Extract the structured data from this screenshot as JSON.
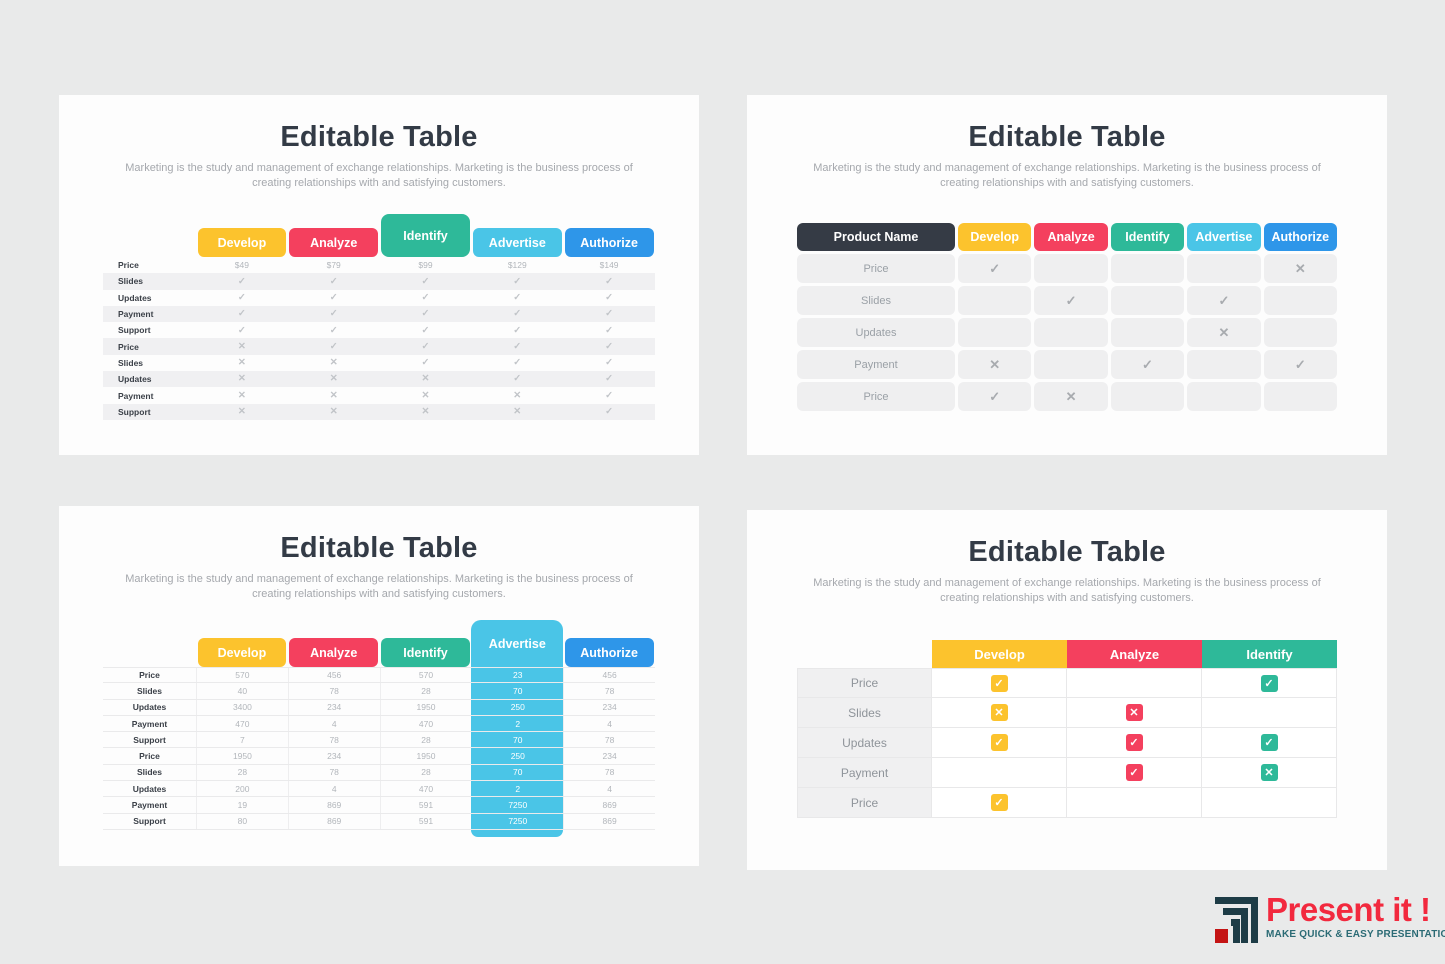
{
  "palette": {
    "page-bg": "#e9eaea",
    "panel-bg": "#fdfdfd",
    "develop": "#fcc32d",
    "analyze": "#f4405e",
    "identify": "#2eb999",
    "advertise": "#4ac5e7",
    "authorize": "#2e96e9",
    "header-dark": "#353b45",
    "logo-red": "#f2293e",
    "logo-teal": "#2b6b75",
    "logo-dark": "#1d3c46",
    "logo-square": "#c41414"
  },
  "slides": [
    {
      "name": "top-left",
      "title": "Editable Table",
      "subtitle": "Marketing is the study and management of exchange relationships. Marketing is the business process of creating relationships with and satisfying customers.",
      "table": {
        "style": "tabs",
        "variant": "striped",
        "raised_col": 2,
        "columns": [
          {
            "label": "Develop",
            "color": "develop"
          },
          {
            "label": "Analyze",
            "color": "analyze"
          },
          {
            "label": "Identify",
            "color": "identify"
          },
          {
            "label": "Advertise",
            "color": "advertise"
          },
          {
            "label": "Authorize",
            "color": "authorize"
          }
        ],
        "rows": [
          {
            "label": "Price",
            "cells": [
              "$49",
              "$79",
              "$99",
              "$129",
              "$149"
            ]
          },
          {
            "label": "Slides",
            "cells": [
              "check",
              "check",
              "check",
              "check",
              "check"
            ]
          },
          {
            "label": "Updates",
            "cells": [
              "check",
              "check",
              "check",
              "check",
              "check"
            ]
          },
          {
            "label": "Payment",
            "cells": [
              "check",
              "check",
              "check",
              "check",
              "check"
            ]
          },
          {
            "label": "Support",
            "cells": [
              "check",
              "check",
              "check",
              "check",
              "check"
            ]
          },
          {
            "label": "Price",
            "cells": [
              "cross",
              "check",
              "check",
              "check",
              "check"
            ]
          },
          {
            "label": "Slides",
            "cells": [
              "cross",
              "cross",
              "check",
              "check",
              "check"
            ]
          },
          {
            "label": "Updates",
            "cells": [
              "cross",
              "cross",
              "cross",
              "check",
              "check"
            ]
          },
          {
            "label": "Payment",
            "cells": [
              "cross",
              "cross",
              "cross",
              "cross",
              "check"
            ]
          },
          {
            "label": "Support",
            "cells": [
              "cross",
              "cross",
              "cross",
              "cross",
              "check"
            ]
          }
        ]
      }
    },
    {
      "name": "top-right",
      "title": "Editable Table",
      "subtitle": "Marketing is the study and management of exchange relationships. Marketing is the business process of creating relationships with and satisfying customers.",
      "table": {
        "style": "cells",
        "corner_label": "Product Name",
        "columns": [
          {
            "label": "Develop",
            "color": "develop"
          },
          {
            "label": "Analyze",
            "color": "analyze"
          },
          {
            "label": "Identify",
            "color": "identify"
          },
          {
            "label": "Advertise",
            "color": "advertise"
          },
          {
            "label": "Authorize",
            "color": "authorize"
          }
        ],
        "rows": [
          {
            "label": "Price",
            "cells": [
              "check",
              "",
              "",
              "",
              "cross"
            ]
          },
          {
            "label": "Slides",
            "cells": [
              "",
              "check",
              "",
              "check",
              ""
            ]
          },
          {
            "label": "Updates",
            "cells": [
              "",
              "",
              "",
              "cross",
              ""
            ]
          },
          {
            "label": "Payment",
            "cells": [
              "cross",
              "",
              "check",
              "",
              "check"
            ]
          },
          {
            "label": "Price",
            "cells": [
              "check",
              "cross",
              "",
              "",
              ""
            ]
          }
        ]
      }
    },
    {
      "name": "bottom-left",
      "title": "Editable Table",
      "subtitle": "Marketing is the study and management of exchange relationships. Marketing is the business process of creating relationships with and satisfying customers.",
      "table": {
        "style": "tabs",
        "variant": "lined",
        "raised_col": 3,
        "highlight_col": 3,
        "columns": [
          {
            "label": "Develop",
            "color": "develop"
          },
          {
            "label": "Analyze",
            "color": "analyze"
          },
          {
            "label": "Identify",
            "color": "identify"
          },
          {
            "label": "Advertise",
            "color": "advertise"
          },
          {
            "label": "Authorize",
            "color": "authorize"
          }
        ],
        "rows": [
          {
            "label": "Price",
            "cells": [
              "570",
              "456",
              "570",
              "23",
              "456"
            ]
          },
          {
            "label": "Slides",
            "cells": [
              "40",
              "78",
              "28",
              "70",
              "78"
            ]
          },
          {
            "label": "Updates",
            "cells": [
              "3400",
              "234",
              "1950",
              "250",
              "234"
            ]
          },
          {
            "label": "Payment",
            "cells": [
              "470",
              "4",
              "470",
              "2",
              "4"
            ]
          },
          {
            "label": "Support",
            "cells": [
              "7",
              "78",
              "28",
              "70",
              "78"
            ]
          },
          {
            "label": "Price",
            "cells": [
              "1950",
              "234",
              "1950",
              "250",
              "234"
            ]
          },
          {
            "label": "Slides",
            "cells": [
              "28",
              "78",
              "28",
              "70",
              "78"
            ]
          },
          {
            "label": "Updates",
            "cells": [
              "200",
              "4",
              "470",
              "2",
              "4"
            ]
          },
          {
            "label": "Payment",
            "cells": [
              "19",
              "869",
              "591",
              "7250",
              "869"
            ]
          },
          {
            "label": "Support",
            "cells": [
              "80",
              "869",
              "591",
              "7250",
              "869"
            ]
          }
        ]
      }
    },
    {
      "name": "bottom-right",
      "title": "Editable Table",
      "subtitle": "Marketing is the study and management of exchange relationships. Marketing is the business process of creating relationships with and satisfying customers.",
      "table": {
        "style": "boxed",
        "columns": [
          {
            "label": "Develop",
            "color": "develop"
          },
          {
            "label": "Analyze",
            "color": "analyze"
          },
          {
            "label": "Identify",
            "color": "identify"
          }
        ],
        "rows": [
          {
            "label": "Price",
            "cells": [
              "check",
              "",
              "check"
            ]
          },
          {
            "label": "Slides",
            "cells": [
              "cross",
              "cross",
              ""
            ]
          },
          {
            "label": "Updates",
            "cells": [
              "check",
              "check",
              "check"
            ]
          },
          {
            "label": "Payment",
            "cells": [
              "",
              "check",
              "cross"
            ]
          },
          {
            "label": "Price",
            "cells": [
              "check",
              "",
              ""
            ]
          }
        ]
      }
    }
  ],
  "logo": {
    "brand": "Present it !",
    "tagline": "MAKE QUICK & EASY PRESENTATIONS"
  }
}
